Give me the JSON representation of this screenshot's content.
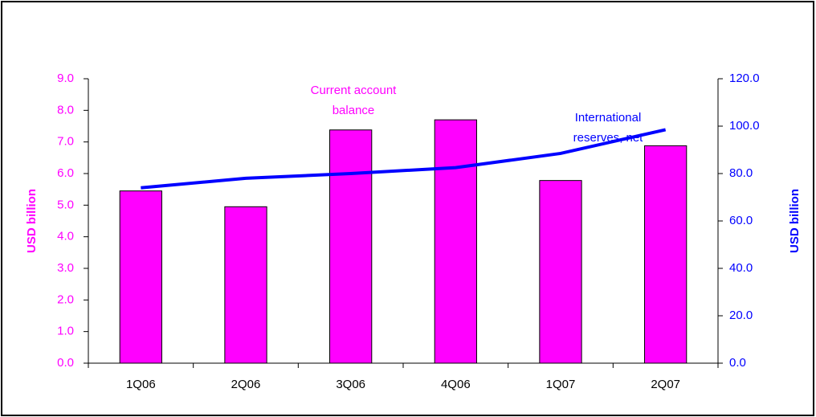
{
  "chart_data": {
    "type": "bar-line",
    "y_label": "USD billion",
    "y2_label": "USD billion",
    "categories": [
      "1Q06",
      "2Q06",
      "3Q06",
      "4Q06",
      "1Q07",
      "2Q07"
    ],
    "series": [
      {
        "type": "bar",
        "color": "#ff00ff",
        "values": [
          5.45,
          4.95,
          7.38,
          7.7,
          5.78,
          6.88
        ]
      },
      {
        "type": "line",
        "color": "#0000ff",
        "axis": "y2",
        "values": [
          74,
          78,
          80,
          82.5,
          88.5,
          98.5
        ]
      }
    ],
    "annotations": [
      {
        "lines": [
          "Current account",
          "balance"
        ],
        "color": "#ff00ff"
      },
      {
        "lines": [
          "International",
          "reserves, net"
        ],
        "color": "#0000ff"
      }
    ],
    "ylim": [
      0,
      9
    ],
    "yticks": [
      {
        "value": 0,
        "label": "0.0"
      },
      {
        "value": 1,
        "label": "1.0"
      },
      {
        "value": 2,
        "label": "2.0"
      },
      {
        "value": 3,
        "label": "3.0"
      },
      {
        "value": 4,
        "label": "4.0"
      },
      {
        "value": 5,
        "label": "5.0"
      },
      {
        "value": 6,
        "label": "6.0"
      },
      {
        "value": 7,
        "label": "7.0"
      },
      {
        "value": 8,
        "label": "8.0"
      },
      {
        "value": 9,
        "label": "9.0"
      }
    ],
    "y2lim": [
      0,
      120
    ],
    "y2ticks": [
      {
        "value": 0,
        "label": "0.0"
      },
      {
        "value": 20,
        "label": "20.0"
      },
      {
        "value": 40,
        "label": "40.0"
      },
      {
        "value": 60,
        "label": "60.0"
      },
      {
        "value": 80,
        "label": "80.0"
      },
      {
        "value": 100,
        "label": "100.0"
      },
      {
        "value": 120,
        "label": "120.0"
      }
    ],
    "grid": false
  }
}
